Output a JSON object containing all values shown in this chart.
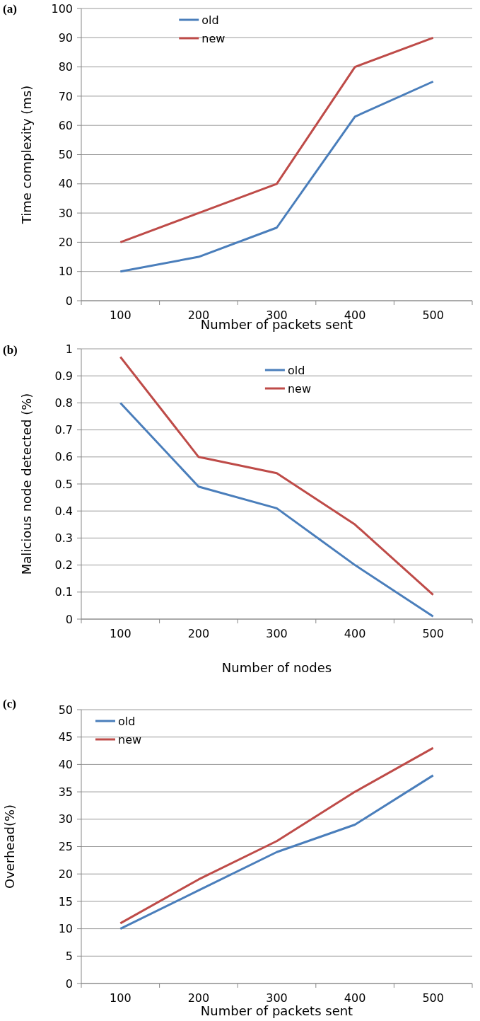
{
  "chart_data": [
    {
      "type": "line",
      "title": "(a)",
      "xlabel": "Number of packets sent",
      "ylabel": "Time complexity (ms)",
      "categories": [
        "100",
        "200",
        "300",
        "400",
        "500"
      ],
      "series": [
        {
          "name": "old",
          "color": "#4a7ebb",
          "values": [
            10,
            15,
            25,
            63,
            75
          ]
        },
        {
          "name": "new",
          "color": "#be4b48",
          "values": [
            20,
            30,
            40,
            80,
            90
          ]
        }
      ],
      "ylim": [
        0,
        100
      ],
      "yticks": [
        0,
        10,
        20,
        30,
        40,
        50,
        60,
        70,
        80,
        90,
        100
      ],
      "grid": "y",
      "legend": "top",
      "marker": "none"
    },
    {
      "type": "line",
      "title": "(b)",
      "xlabel": "Number of nodes",
      "ylabel": "Malicious node detected (%)",
      "categories": [
        "100",
        "200",
        "300",
        "400",
        "500"
      ],
      "series": [
        {
          "name": "old",
          "color": "#4a7ebb",
          "values": [
            0.8,
            0.49,
            0.41,
            0.2,
            0.01
          ]
        },
        {
          "name": "new",
          "color": "#be4b48",
          "values": [
            0.97,
            0.6,
            0.54,
            0.35,
            0.09
          ]
        }
      ],
      "ylim": [
        0,
        1
      ],
      "yticks": [
        0,
        0.1,
        0.2,
        0.3,
        0.4,
        0.5,
        0.6,
        0.7,
        0.8,
        0.9,
        1
      ],
      "grid": "y",
      "legend": "top right",
      "marker": "none"
    },
    {
      "type": "line",
      "title": "(c)",
      "xlabel": "Number of packets sent",
      "ylabel": "Overhead(%)",
      "categories": [
        "100",
        "200",
        "300",
        "400",
        "500"
      ],
      "series": [
        {
          "name": "old",
          "color": "#4a7ebb",
          "values": [
            10,
            17,
            24,
            29,
            38
          ]
        },
        {
          "name": "new",
          "color": "#be4b48",
          "values": [
            11,
            19,
            26,
            35,
            43
          ]
        }
      ],
      "ylim": [
        0,
        50
      ],
      "yticks": [
        0,
        5,
        10,
        15,
        20,
        25,
        30,
        35,
        40,
        45,
        50
      ],
      "grid": "y",
      "legend": "top left",
      "marker": "none"
    }
  ]
}
